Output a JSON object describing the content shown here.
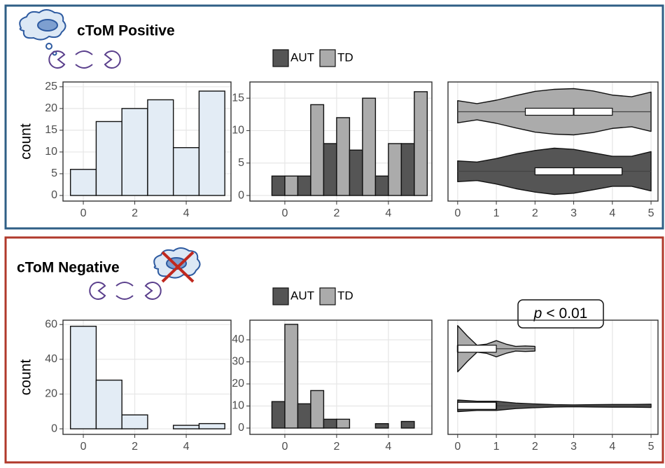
{
  "panels": [
    {
      "title": "cToM Positive"
    },
    {
      "title": "cToM Negative"
    }
  ],
  "chart_data": [
    {
      "type": "histogram",
      "y_label": "count",
      "bins": [
        -0.5,
        0.5,
        1.5,
        2.5,
        3.5,
        4.5,
        5.5
      ],
      "values": [
        6,
        17,
        20,
        22,
        11,
        24
      ],
      "color": "#e3ecf5",
      "xlim": [
        -0.79,
        5.74
      ],
      "xticks": [
        0,
        2,
        4
      ],
      "ylim": [
        -1.29,
        26.1
      ],
      "yticks": [
        0,
        5,
        10,
        15,
        20,
        25
      ],
      "grid": true
    },
    {
      "type": "histogram",
      "bins": [
        -0.5,
        0.5,
        1.5,
        2.5,
        3.5,
        4.5,
        5.5
      ],
      "series": [
        {
          "name": "AUT",
          "color": "#555555",
          "values": [
            3,
            3,
            8,
            7,
            3,
            8
          ]
        },
        {
          "name": "TD",
          "color": "#ababab",
          "values": [
            3,
            14,
            12,
            15,
            8,
            16
          ]
        }
      ],
      "xlim": [
        -1.35,
        5.68
      ],
      "xticks": [
        0,
        2,
        4
      ],
      "ylim": [
        -0.86,
        17.5
      ],
      "yticks": [
        0,
        5,
        10,
        15
      ],
      "grid": true
    },
    {
      "type": "violin",
      "xlim": [
        -0.25,
        5.18
      ],
      "xticks": [
        0,
        1,
        2,
        3,
        4,
        5
      ],
      "grid": true,
      "series": [
        {
          "color": "#ababab",
          "density_x": [
            0,
            0.5,
            1,
            1.5,
            2,
            2.5,
            3,
            3.5,
            4,
            4.5,
            5
          ],
          "density": [
            0.48,
            0.35,
            0.5,
            0.7,
            0.88,
            0.97,
            1,
            0.9,
            0.72,
            0.65,
            0.85
          ],
          "box": [
            1.75,
            3,
            4
          ],
          "whisker": [
            0,
            5
          ]
        },
        {
          "color": "#555555",
          "density_x": [
            0,
            0.5,
            1,
            1.5,
            2,
            2.5,
            3,
            3.5,
            4,
            4.5,
            5
          ],
          "density": [
            0.45,
            0.4,
            0.55,
            0.75,
            0.9,
            1,
            0.95,
            0.8,
            0.65,
            0.65,
            0.85
          ],
          "box": [
            2,
            3,
            4.25
          ],
          "whisker": [
            0,
            5
          ]
        }
      ]
    },
    {
      "type": "histogram",
      "y_label": "count",
      "bins": [
        -0.5,
        0.5,
        1.5,
        2.5,
        3.5,
        4.5,
        5.5
      ],
      "values": [
        59,
        28,
        8,
        0,
        2,
        3
      ],
      "color": "#e3ecf5",
      "xlim": [
        -0.79,
        5.74
      ],
      "xticks": [
        0,
        2,
        4
      ],
      "ylim": [
        -3.2,
        62.5
      ],
      "yticks": [
        0,
        20,
        40,
        60
      ],
      "grid": true
    },
    {
      "type": "histogram",
      "bins": [
        -0.5,
        0.5,
        1.5,
        2.5,
        3.5,
        4.5,
        5.5
      ],
      "series": [
        {
          "name": "AUT",
          "color": "#555555",
          "values": [
            12,
            11,
            4,
            0,
            2,
            3
          ]
        },
        {
          "name": "TD",
          "color": "#ababab",
          "values": [
            47,
            17,
            4,
            0,
            0,
            0
          ]
        }
      ],
      "xlim": [
        -1.35,
        5.68
      ],
      "xticks": [
        0,
        2,
        4
      ],
      "ylim": [
        -2.86,
        48.9
      ],
      "yticks": [
        0,
        10,
        20,
        30,
        40
      ],
      "grid": true
    },
    {
      "type": "violin",
      "annotation": [
        "p",
        "< 0.01"
      ],
      "xlim": [
        -0.25,
        5.18
      ],
      "xticks": [
        0,
        1,
        2,
        3,
        4,
        5
      ],
      "grid": true,
      "series": [
        {
          "color": "#ababab",
          "density_x": [
            0,
            0.25,
            0.5,
            0.75,
            1,
            1.25,
            1.5,
            1.75,
            2
          ],
          "density": [
            1,
            0.55,
            0.15,
            0.2,
            0.35,
            0.2,
            0.1,
            0.12,
            0.1
          ],
          "box": [
            0,
            0,
            1
          ],
          "whisker": [
            0,
            2
          ]
        },
        {
          "color": "#555555",
          "density_x": [
            0,
            0.5,
            1,
            1.5,
            2,
            2.5,
            3,
            3.5,
            4,
            4.5,
            5
          ],
          "density": [
            0.25,
            0.2,
            0.2,
            0.12,
            0.08,
            0.05,
            0.04,
            0.05,
            0.06,
            0.06,
            0.07
          ],
          "box": [
            0,
            1,
            1
          ],
          "whisker": [
            0,
            5
          ]
        }
      ]
    }
  ]
}
